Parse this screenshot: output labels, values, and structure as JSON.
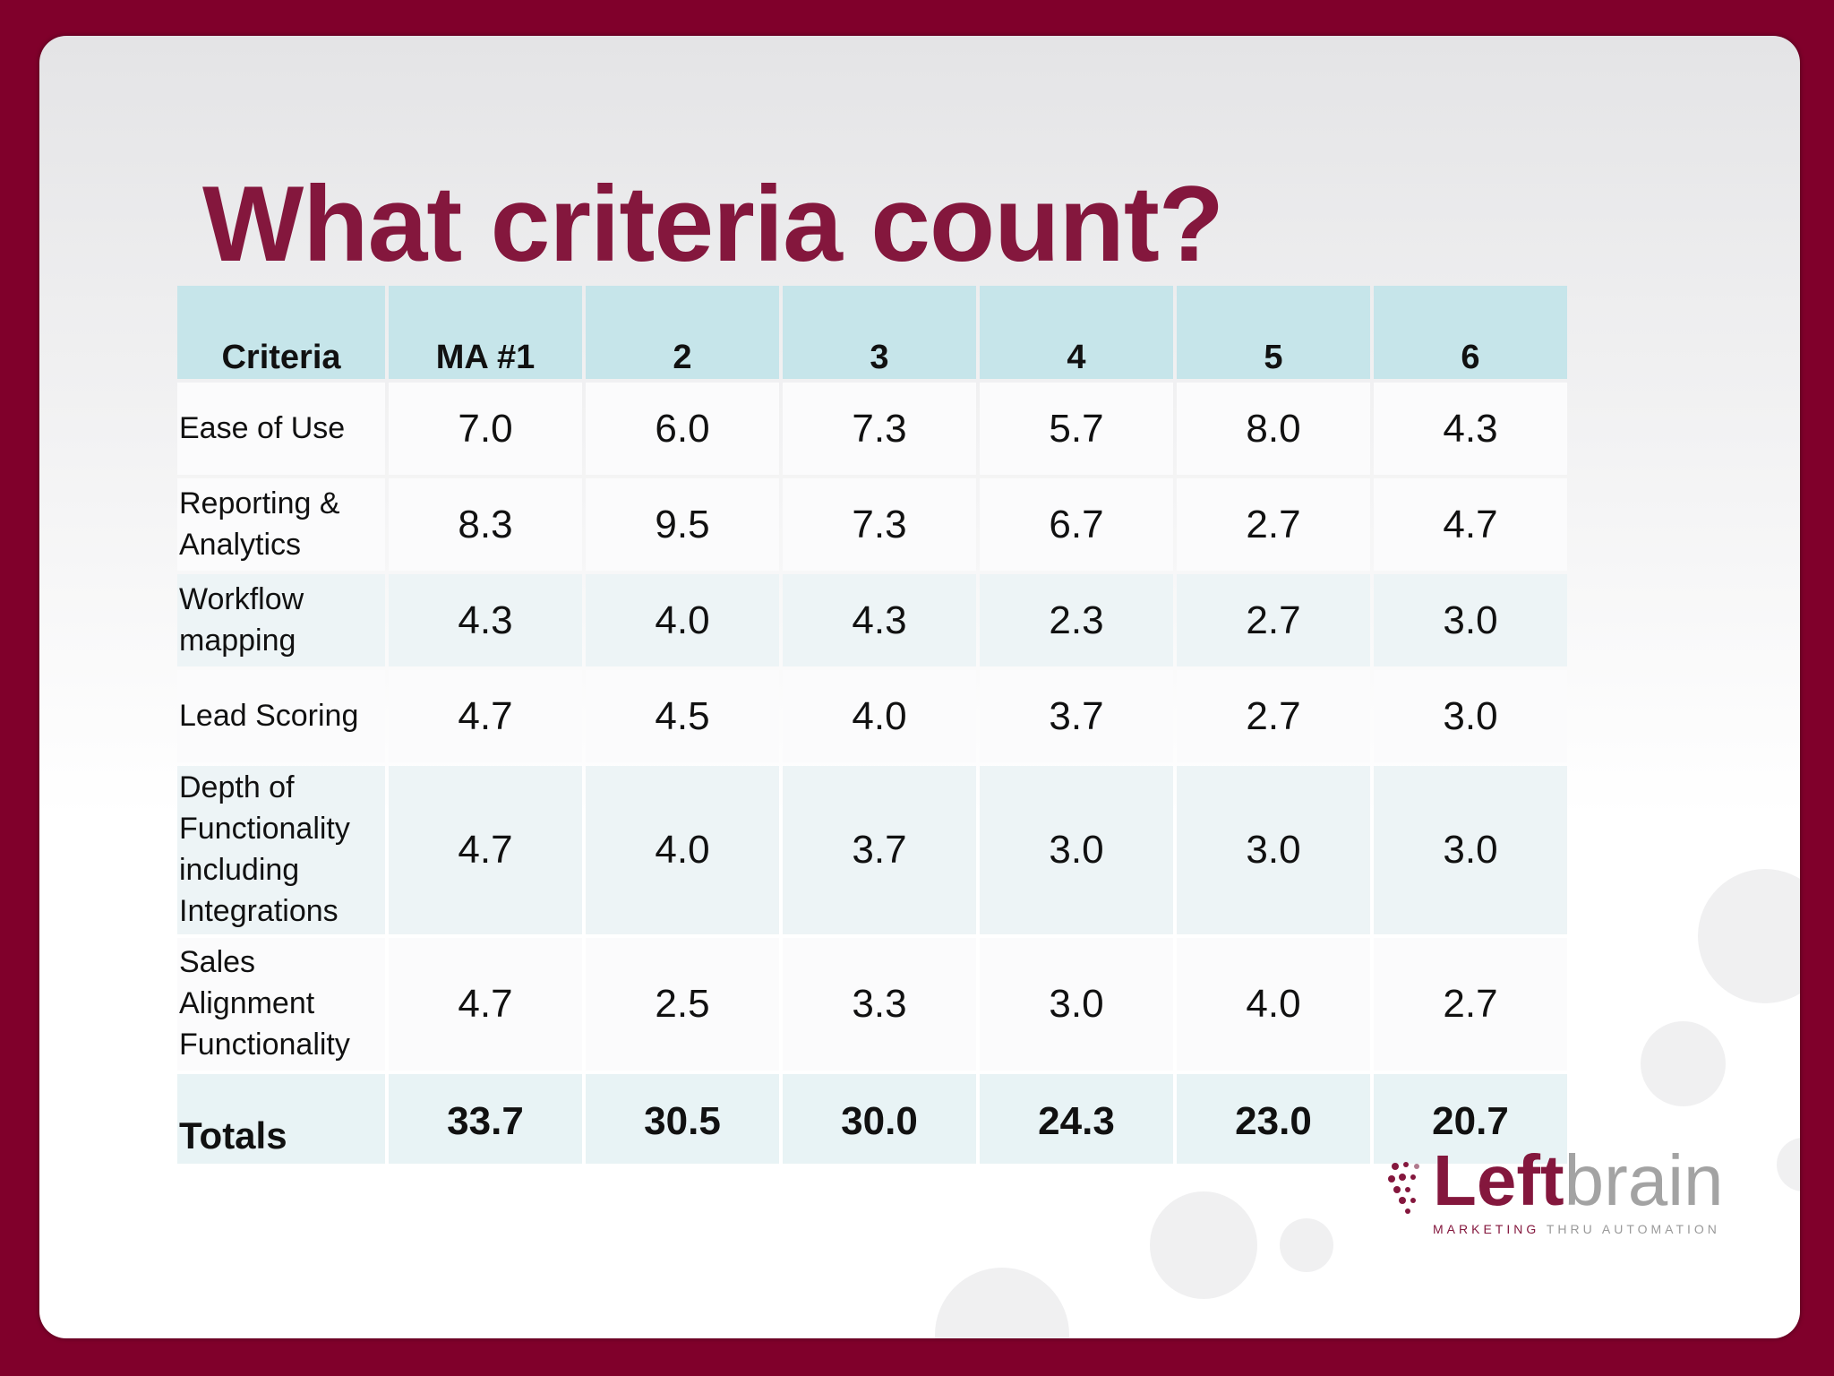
{
  "slide": {
    "title": "What criteria count?",
    "table": {
      "headers": [
        "Criteria",
        "MA #1",
        "2",
        "3",
        "4",
        "5",
        "6"
      ],
      "rows": [
        {
          "label": "Ease of Use",
          "values": [
            "7.0",
            "6.0",
            "7.3",
            "5.7",
            "8.0",
            "4.3"
          ]
        },
        {
          "label": "Reporting & Analytics",
          "values": [
            "8.3",
            "9.5",
            "7.3",
            "6.7",
            "2.7",
            "4.7"
          ]
        },
        {
          "label": "Workflow mapping",
          "values": [
            "4.3",
            "4.0",
            "4.3",
            "2.3",
            "2.7",
            "3.0"
          ]
        },
        {
          "label": "Lead Scoring",
          "values": [
            "4.7",
            "4.5",
            "4.0",
            "3.7",
            "2.7",
            "3.0"
          ]
        },
        {
          "label": "Depth of Functionality including Integrations",
          "values": [
            "4.7",
            "4.0",
            "3.7",
            "3.0",
            "3.0",
            "3.0"
          ]
        },
        {
          "label": "Sales Alignment Functionality",
          "values": [
            "4.7",
            "2.5",
            "3.3",
            "3.0",
            "4.0",
            "2.7"
          ]
        }
      ],
      "totals": {
        "label": "Totals",
        "values": [
          "33.7",
          "30.5",
          "30.0",
          "24.3",
          "23.0",
          "20.7"
        ]
      }
    },
    "logo": {
      "word_left": "Left",
      "word_right": "brain",
      "tagline_left": "MARKETING",
      "tagline_right": "THRU AUTOMATION"
    },
    "colors": {
      "frame": "#80002b",
      "title": "#84173d",
      "header_fill": "#c6e5ea"
    }
  }
}
